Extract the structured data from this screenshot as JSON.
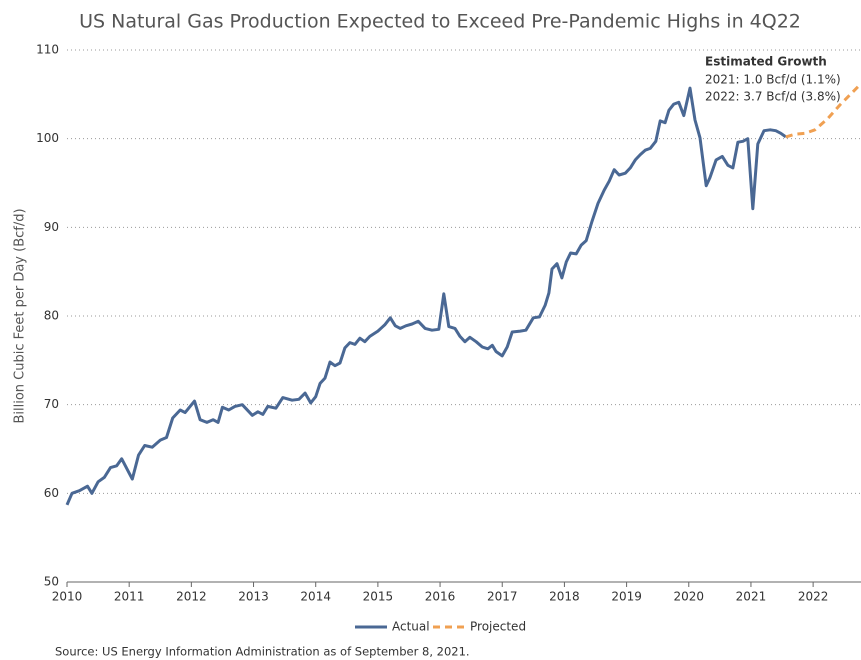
{
  "chart_data": {
    "type": "line",
    "title": "US Natural Gas Production Expected to Exceed Pre-Pandemic Highs in 4Q22",
    "y_label": "Billion Cubic Feet per Day (Bcf/d)",
    "source": "Source: US Energy Information Administration as of September 8, 2021.",
    "annotation": {
      "title": "Estimated Growth",
      "lines": [
        "2021: 1.0 Bcf/d (1.1%)",
        "2022: 3.7 Bcf/d (3.8%)"
      ]
    },
    "xlim": [
      2010,
      2022.77
    ],
    "xticks": [
      2010,
      2011,
      2012,
      2013,
      2014,
      2015,
      2016,
      2017,
      2018,
      2019,
      2020,
      2021,
      2022
    ],
    "ylim": [
      50,
      110
    ],
    "yticks": [
      50,
      60,
      70,
      80,
      90,
      100,
      110
    ],
    "grid": true,
    "legend": "bottom",
    "series": [
      {
        "name": "Actual",
        "color": "#4a6894",
        "dash": false,
        "x": [
          2010.0,
          2010.08,
          2010.2,
          2010.33,
          2010.4,
          2010.5,
          2010.6,
          2010.7,
          2010.8,
          2010.88,
          2011.05,
          2011.15,
          2011.25,
          2011.37,
          2011.5,
          2011.6,
          2011.7,
          2011.82,
          2011.9,
          2012.05,
          2012.14,
          2012.25,
          2012.35,
          2012.43,
          2012.5,
          2012.6,
          2012.7,
          2012.82,
          2012.98,
          2013.07,
          2013.15,
          2013.23,
          2013.36,
          2013.47,
          2013.62,
          2013.73,
          2013.83,
          2013.92,
          2014.0,
          2014.07,
          2014.15,
          2014.23,
          2014.31,
          2014.39,
          2014.47,
          2014.55,
          2014.63,
          2014.71,
          2014.79,
          2014.87,
          2015.0,
          2015.11,
          2015.2,
          2015.28,
          2015.36,
          2015.45,
          2015.55,
          2015.65,
          2015.76,
          2015.87,
          2015.98,
          2016.06,
          2016.14,
          2016.24,
          2016.32,
          2016.4,
          2016.48,
          2016.58,
          2016.68,
          2016.77,
          2016.84,
          2016.9,
          2017.0,
          2017.08,
          2017.16,
          2017.29,
          2017.38,
          2017.5,
          2017.6,
          2017.69,
          2017.75,
          2017.8,
          2017.88,
          2017.96,
          2018.03,
          2018.1,
          2018.19,
          2018.27,
          2018.35,
          2018.44,
          2018.54,
          2018.64,
          2018.72,
          2018.8,
          2018.88,
          2018.98,
          2019.06,
          2019.14,
          2019.22,
          2019.3,
          2019.38,
          2019.47,
          2019.54,
          2019.62,
          2019.68,
          2019.76,
          2019.84,
          2019.92,
          2020.02,
          2020.1,
          2020.18,
          2020.28,
          2020.34,
          2020.44,
          2020.54,
          2020.63,
          2020.71,
          2020.79,
          2020.87,
          2020.95,
          2021.03,
          2021.11,
          2021.21,
          2021.31,
          2021.4,
          2021.48,
          2021.56
        ],
        "values": [
          58.7,
          60.0,
          60.3,
          60.8,
          60.0,
          61.3,
          61.8,
          62.9,
          63.1,
          63.9,
          61.6,
          64.3,
          65.4,
          65.2,
          66.0,
          66.3,
          68.5,
          69.4,
          69.1,
          70.4,
          68.3,
          68.0,
          68.3,
          68.0,
          69.7,
          69.4,
          69.8,
          70.0,
          68.8,
          69.2,
          68.9,
          69.8,
          69.6,
          70.8,
          70.5,
          70.6,
          71.3,
          70.2,
          70.9,
          72.4,
          73.0,
          74.8,
          74.4,
          74.7,
          76.4,
          77.0,
          76.8,
          77.5,
          77.1,
          77.7,
          78.3,
          79.0,
          79.8,
          78.9,
          78.6,
          78.9,
          79.1,
          79.4,
          78.6,
          78.4,
          78.5,
          82.5,
          78.8,
          78.6,
          77.7,
          77.1,
          77.6,
          77.1,
          76.5,
          76.3,
          76.7,
          76.0,
          75.5,
          76.5,
          78.2,
          78.3,
          78.4,
          79.8,
          79.9,
          81.2,
          82.6,
          85.3,
          85.9,
          84.3,
          86.1,
          87.1,
          87.0,
          88.0,
          88.5,
          90.6,
          92.7,
          94.2,
          95.2,
          96.5,
          95.9,
          96.1,
          96.7,
          97.6,
          98.2,
          98.7,
          98.9,
          99.7,
          102.0,
          101.8,
          103.2,
          103.9,
          104.1,
          102.6,
          105.7,
          102.1,
          100.1,
          94.7,
          95.6,
          97.6,
          98.0,
          97.0,
          96.7,
          99.6,
          99.7,
          100.0,
          92.1,
          99.4,
          100.9,
          101.0,
          100.9,
          100.6,
          100.2
        ]
      },
      {
        "name": "Projected",
        "color": "#f0a052",
        "dash": true,
        "x": [
          2021.56,
          2021.71,
          2021.87,
          2022.03,
          2022.24,
          2022.43,
          2022.77
        ],
        "values": [
          100.2,
          100.5,
          100.6,
          101.0,
          102.3,
          103.8,
          106.2
        ]
      }
    ]
  }
}
